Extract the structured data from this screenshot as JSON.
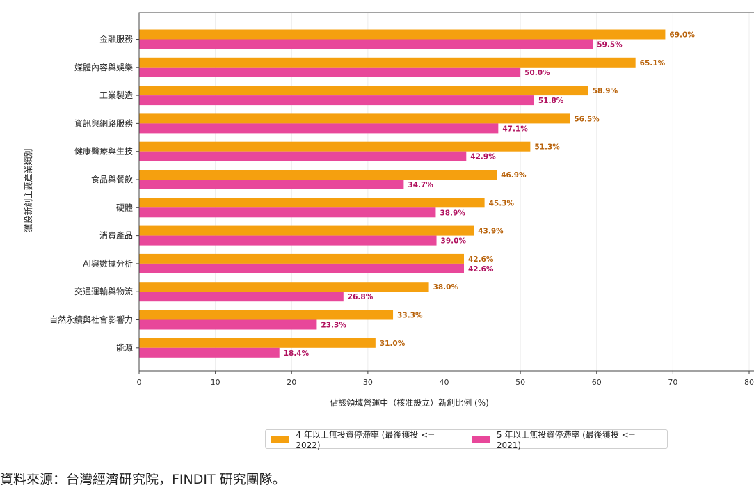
{
  "chart_data": {
    "type": "bar",
    "orientation": "horizontal",
    "categories": [
      "金融服務",
      "媒體內容與娛樂",
      "工業製造",
      "資訊與網路服務",
      "健康醫療與生技",
      "食品與餐飲",
      "硬體",
      "消費產品",
      "AI與數據分析",
      "交通運輸與物流",
      "自然永續與社會影響力",
      "能源"
    ],
    "series": [
      {
        "name": "4 年以上無投資停滯率 (最後獲投 <= 2022)",
        "color": "#f5a00f",
        "label_color": "#b8620a",
        "values": [
          69.0,
          65.1,
          58.9,
          56.5,
          51.3,
          46.9,
          45.3,
          43.9,
          42.6,
          38.0,
          33.3,
          31.0
        ],
        "labels": [
          "69.0%",
          "65.1%",
          "58.9%",
          "56.5%",
          "51.3%",
          "46.9%",
          "45.3%",
          "43.9%",
          "42.6%",
          "38.0%",
          "33.3%",
          "31.0%"
        ]
      },
      {
        "name": "5 年以上無投資停滯率 (最後獲投 <= 2021)",
        "color": "#e8479a",
        "label_color": "#b0105e",
        "values": [
          59.5,
          50.0,
          51.8,
          47.1,
          42.9,
          34.7,
          38.9,
          39.0,
          42.6,
          26.8,
          23.3,
          18.4
        ],
        "labels": [
          "59.5%",
          "50.0%",
          "51.8%",
          "47.1%",
          "42.9%",
          "34.7%",
          "38.9%",
          "39.0%",
          "42.6%",
          "26.8%",
          "23.3%",
          "18.4%"
        ]
      }
    ],
    "xlabel": "佔該領域營運中（核准設立）新創比例 (%)",
    "ylabel": "獲投新創主要產業類別",
    "xlim": [
      0,
      80
    ],
    "xticks": [
      "0",
      "10",
      "20",
      "30",
      "40",
      "50",
      "60",
      "70",
      "80"
    ],
    "grid": true,
    "legend_position": "bottom-right"
  },
  "source_note": "資料來源：台灣經濟研究院，FINDIT 研究團隊。"
}
